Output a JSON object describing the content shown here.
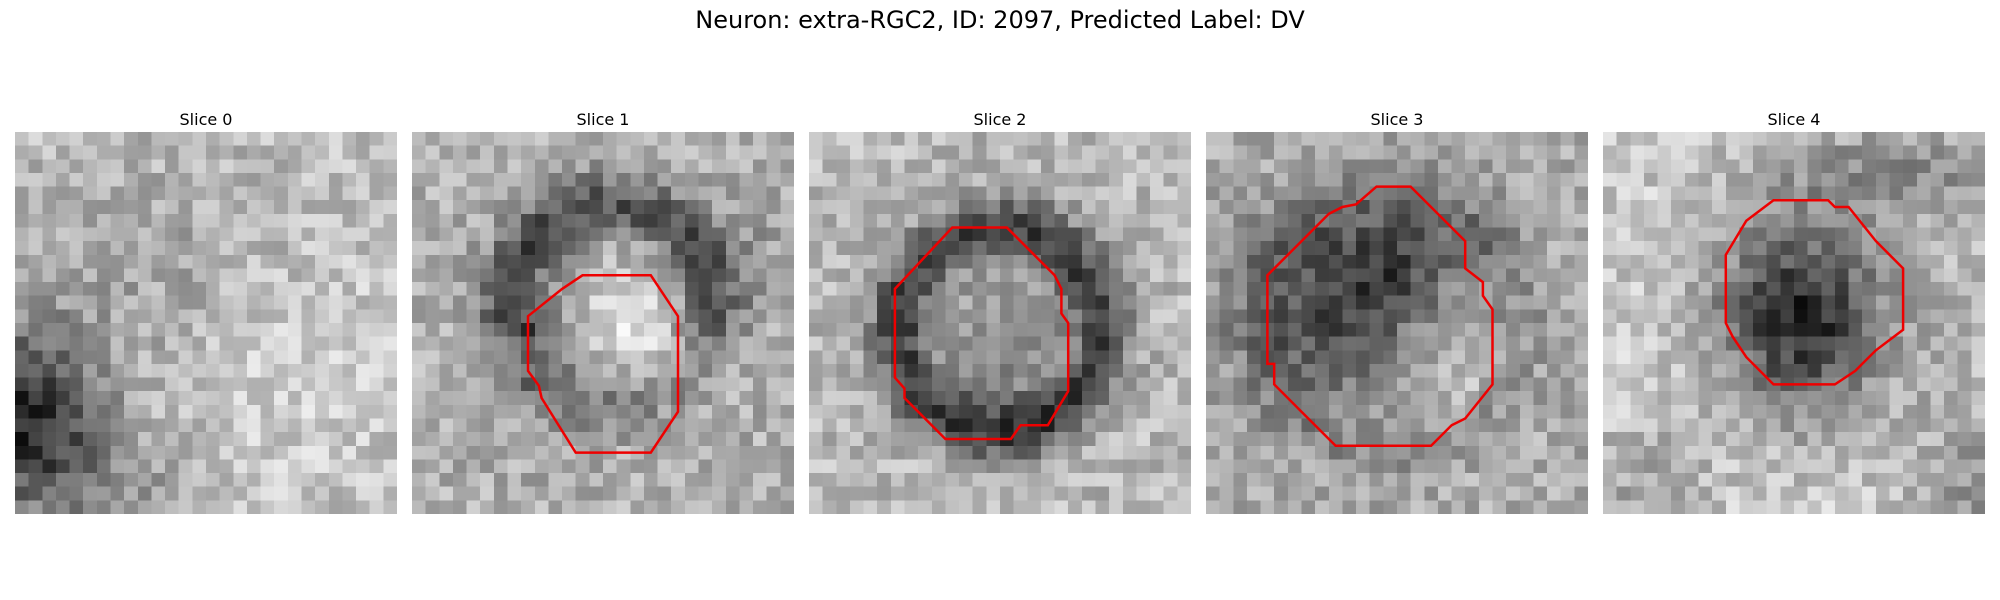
{
  "figure": {
    "title": "Neuron: extra-RGC2, ID: 2097, Predicted Label: DV"
  },
  "colors": {
    "contour": "#ee0000",
    "background": "#ffffff"
  },
  "panels": [
    {
      "title": "Slice 0",
      "has_contour": false
    },
    {
      "title": "Slice 1",
      "has_contour": true
    },
    {
      "title": "Slice 2",
      "has_contour": true
    },
    {
      "title": "Slice 3",
      "has_contour": true
    },
    {
      "title": "Slice 4",
      "has_contour": true
    }
  ]
}
